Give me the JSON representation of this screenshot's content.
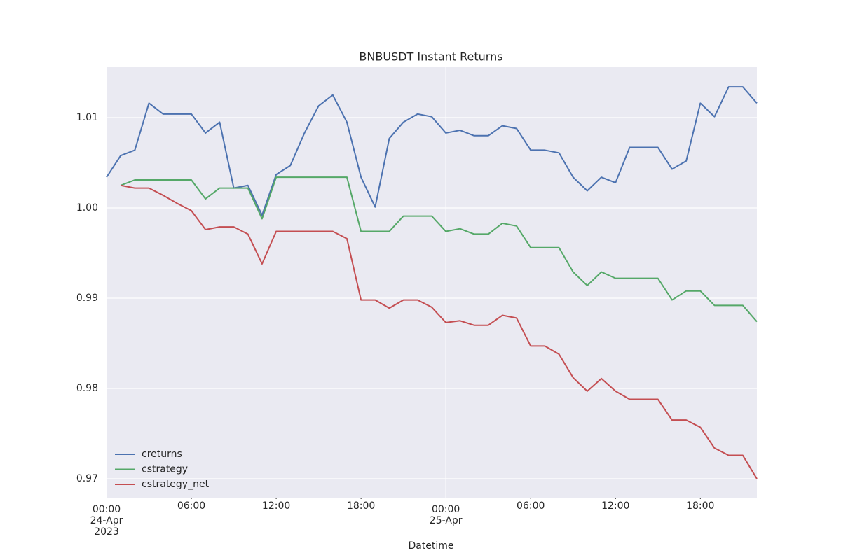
{
  "chart_data": {
    "type": "line",
    "title": "BNBUSDT Instant Returns",
    "x_label": "Datetime",
    "x": [
      "2023-04-24 00:00",
      "2023-04-24 01:00",
      "2023-04-24 02:00",
      "2023-04-24 03:00",
      "2023-04-24 04:00",
      "2023-04-24 05:00",
      "2023-04-24 06:00",
      "2023-04-24 07:00",
      "2023-04-24 08:00",
      "2023-04-24 09:00",
      "2023-04-24 10:00",
      "2023-04-24 11:00",
      "2023-04-24 12:00",
      "2023-04-24 13:00",
      "2023-04-24 14:00",
      "2023-04-24 15:00",
      "2023-04-24 16:00",
      "2023-04-24 17:00",
      "2023-04-24 18:00",
      "2023-04-24 19:00",
      "2023-04-24 20:00",
      "2023-04-24 21:00",
      "2023-04-24 22:00",
      "2023-04-24 23:00",
      "2023-04-25 00:00",
      "2023-04-25 01:00",
      "2023-04-25 02:00",
      "2023-04-25 03:00",
      "2023-04-25 04:00",
      "2023-04-25 05:00",
      "2023-04-25 06:00",
      "2023-04-25 07:00",
      "2023-04-25 08:00",
      "2023-04-25 09:00",
      "2023-04-25 10:00",
      "2023-04-25 11:00",
      "2023-04-25 12:00",
      "2023-04-25 13:00",
      "2023-04-25 14:00",
      "2023-04-25 15:00",
      "2023-04-25 16:00",
      "2023-04-25 17:00",
      "2023-04-25 18:00",
      "2023-04-25 19:00",
      "2023-04-25 20:00",
      "2023-04-25 21:00",
      "2023-04-25 22:00"
    ],
    "series": [
      {
        "name": "creturns",
        "color": "#4c72b0",
        "values": [
          1.0034,
          1.0058,
          1.0064,
          1.0116,
          1.0104,
          1.0104,
          1.0104,
          1.0083,
          1.0095,
          1.0022,
          1.0025,
          0.9992,
          1.0037,
          1.0047,
          1.0083,
          1.0113,
          1.0125,
          1.0095,
          1.0034,
          1.0001,
          1.0077,
          1.0095,
          1.0104,
          1.0101,
          1.0083,
          1.0086,
          1.008,
          1.008,
          1.0091,
          1.0088,
          1.0064,
          1.0064,
          1.0061,
          1.0034,
          1.0019,
          1.0034,
          1.0028,
          1.0067,
          1.0067,
          1.0067,
          1.0043,
          1.0052,
          1.0116,
          1.0101,
          1.0134,
          1.0134,
          1.0116
        ]
      },
      {
        "name": "cstrategy",
        "color": "#55a868",
        "values": [
          null,
          1.0025,
          1.0031,
          1.0031,
          1.0031,
          1.0031,
          1.0031,
          1.001,
          1.0022,
          1.0022,
          1.0022,
          0.9988,
          1.0034,
          1.0034,
          1.0034,
          1.0034,
          1.0034,
          1.0034,
          0.9974,
          0.9974,
          0.9974,
          0.9991,
          0.9991,
          0.9991,
          0.9974,
          0.9977,
          0.9971,
          0.9971,
          0.9983,
          0.998,
          0.9956,
          0.9956,
          0.9956,
          0.9929,
          0.9914,
          0.9929,
          0.9922,
          0.9922,
          0.9922,
          0.9922,
          0.9898,
          0.9908,
          0.9908,
          0.9892,
          0.9892,
          0.9892,
          0.9874
        ]
      },
      {
        "name": "cstrategy_net",
        "color": "#c44e52",
        "values": [
          null,
          1.0025,
          1.0022,
          1.0022,
          1.0014,
          1.0005,
          0.9997,
          0.9976,
          0.9979,
          0.9979,
          0.9971,
          0.9938,
          0.9974,
          0.9974,
          0.9974,
          0.9974,
          0.9974,
          0.9966,
          0.9898,
          0.9898,
          0.9889,
          0.9898,
          0.9898,
          0.989,
          0.9873,
          0.9875,
          0.987,
          0.987,
          0.9881,
          0.9878,
          0.9847,
          0.9847,
          0.9838,
          0.9812,
          0.9797,
          0.9811,
          0.9797,
          0.9788,
          0.9788,
          0.9788,
          0.9765,
          0.9765,
          0.9757,
          0.9734,
          0.9726,
          0.9726,
          0.97
        ]
      }
    ],
    "xlim": [
      "2023-04-24 00:00",
      "2023-04-25 22:00"
    ],
    "xticks": [
      {
        "value": "2023-04-24 00:00",
        "label": [
          "00:00",
          "24-Apr",
          "2023"
        ]
      },
      {
        "value": "2023-04-25 00:00",
        "label": [
          "00:00",
          "25-Apr"
        ]
      }
    ],
    "xticks_minor": [
      {
        "value": "2023-04-24 06:00",
        "label": "06:00"
      },
      {
        "value": "2023-04-24 12:00",
        "label": "12:00"
      },
      {
        "value": "2023-04-24 18:00",
        "label": "18:00"
      },
      {
        "value": "2023-04-25 06:00",
        "label": "06:00"
      },
      {
        "value": "2023-04-25 12:00",
        "label": "12:00"
      },
      {
        "value": "2023-04-25 18:00",
        "label": "18:00"
      }
    ],
    "ylim": [
      0.96791,
      1.01558
    ],
    "yticks": [
      0.97,
      0.98,
      0.99,
      {
        "value": 1,
        "label": "1.00"
      },
      1.01
    ],
    "grid": true,
    "legend": "lower left"
  }
}
